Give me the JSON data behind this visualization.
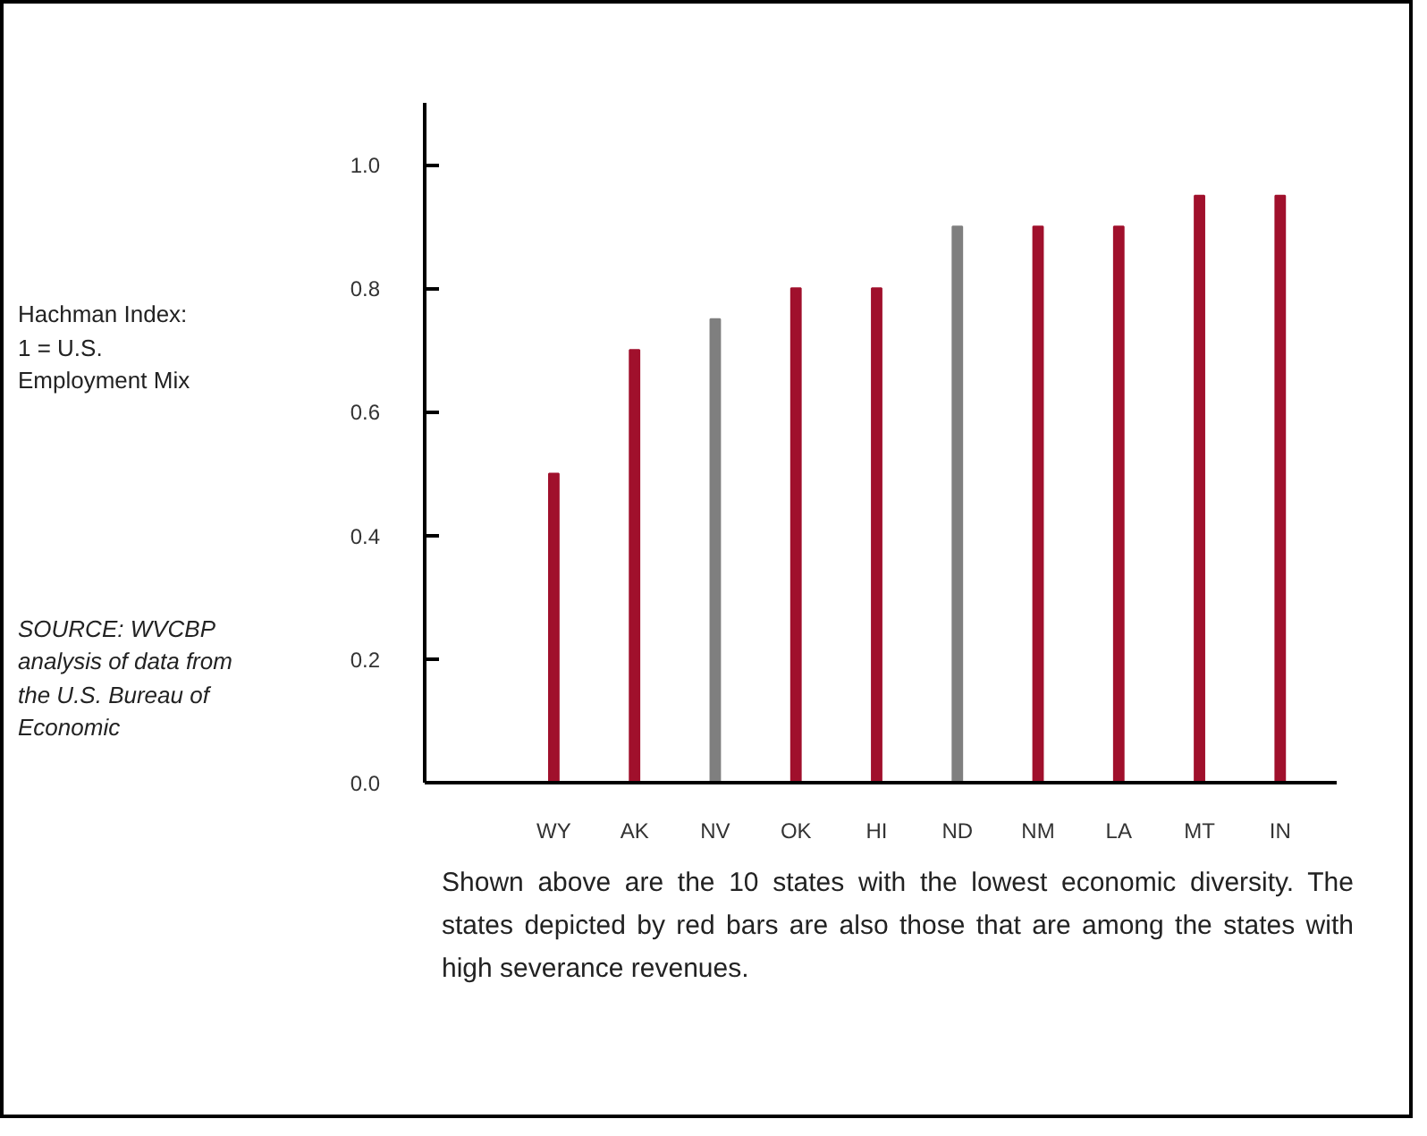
{
  "chart_data": {
    "type": "bar",
    "categories": [
      "WY",
      "AK",
      "NV",
      "OK",
      "HI",
      "ND",
      "NM",
      "LA",
      "MT",
      "IN"
    ],
    "values": [
      0.5,
      0.7,
      0.75,
      0.8,
      0.8,
      0.9,
      0.9,
      0.9,
      0.95,
      0.95
    ],
    "colors": [
      "#a0102c",
      "#a0102c",
      "#7f7f7f",
      "#a0102c",
      "#a0102c",
      "#7f7f7f",
      "#a0102c",
      "#a0102c",
      "#a0102c",
      "#a0102c"
    ],
    "ylim": [
      0,
      1.1
    ],
    "yticks": [
      {
        "value": 0,
        "label": "0.0"
      },
      0.2,
      0.4,
      0.6,
      0.8,
      {
        "value": 1,
        "label": "1.0"
      }
    ],
    "grid": false,
    "annotations": [
      "Hachman Index:\n1 = U.S.\nEmployment Mix",
      "SOURCE: WVCBP analysis of data from the U.S. Bureau of Economic",
      "Shown above are the 10 states with the lowest economic diversity. The states depicted by red bars are also those that are among the states with high severance revenues."
    ]
  }
}
